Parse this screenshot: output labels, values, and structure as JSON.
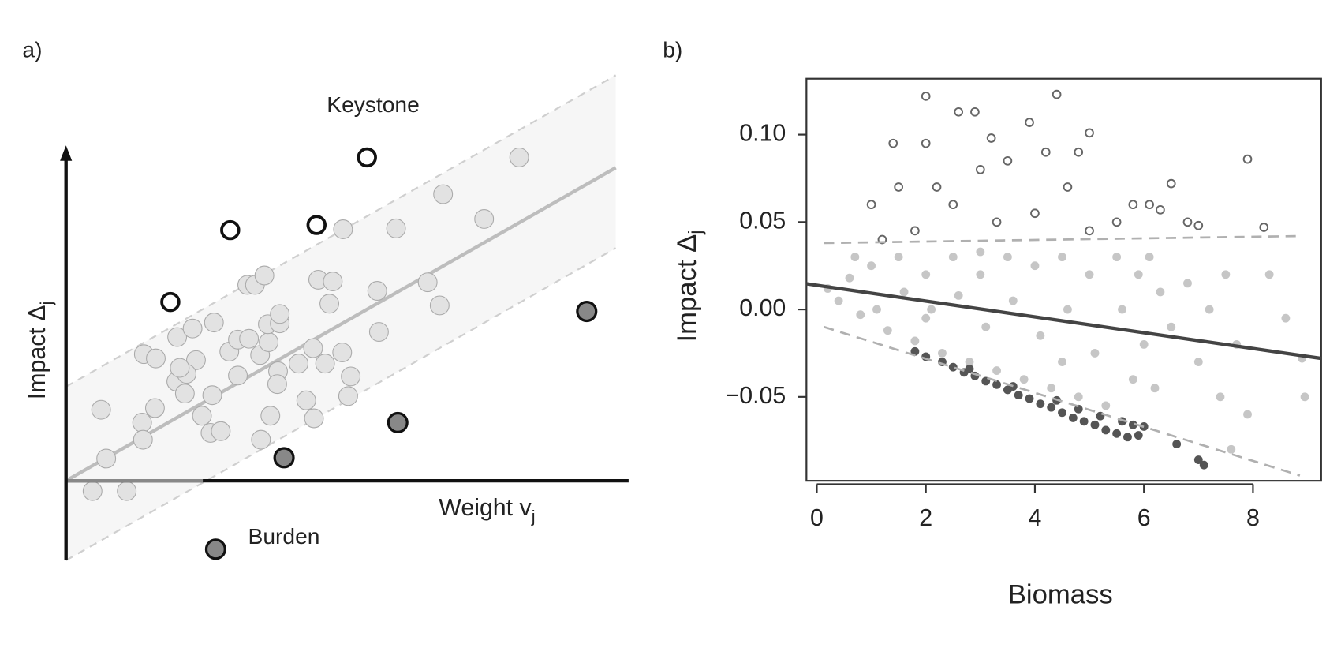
{
  "panel_a": {
    "label": "a)",
    "y_label": {
      "text": "Impact Δ",
      "subscript": "j"
    },
    "x_label": {
      "text": "Weight v",
      "subscript": "j"
    },
    "keystone_label": "Keystone",
    "burden_label": "Burden"
  },
  "chart_data": {
    "type": "scatter",
    "panel_label": "b)",
    "x_label": "Biomass",
    "y_label": {
      "text": "Impact Δ",
      "subscript": "j"
    },
    "xlim": [
      -0.19,
      9.25
    ],
    "ylim": [
      -0.098,
      0.132
    ],
    "xticks": [
      0,
      2,
      4,
      6,
      8
    ],
    "yticks": [
      {
        "value": 0.1,
        "label": "0.10"
      },
      {
        "value": 0.05,
        "label": "0.05"
      },
      {
        "value": 0,
        "label": "0.00"
      },
      {
        "value": -0.05,
        "label": "−0.05"
      }
    ],
    "series": [
      {
        "marker": "filled",
        "color": "#c6c6c6",
        "x": [
          0.2,
          0.4,
          0.6,
          0.8,
          1.0,
          1.1,
          1.3,
          1.5,
          1.6,
          1.8,
          2.0,
          2.1,
          2.3,
          2.5,
          2.6,
          2.8,
          3.0,
          3.1,
          3.3,
          3.5,
          3.6,
          3.8,
          4.0,
          4.1,
          4.3,
          4.5,
          4.6,
          4.8,
          5.0,
          5.1,
          5.3,
          5.5,
          5.6,
          5.8,
          5.9,
          6.0,
          6.1,
          6.2,
          6.3,
          6.5,
          6.8,
          7.0,
          7.2,
          7.4,
          7.5,
          7.7,
          8.3,
          8.6,
          8.9,
          8.95,
          7.9,
          7.6,
          0.7,
          3.0,
          2.0,
          4.5
        ],
        "values": [
          0.012,
          0.005,
          0.018,
          -0.003,
          0.025,
          0.0,
          -0.012,
          0.03,
          0.01,
          -0.018,
          0.02,
          0.0,
          -0.025,
          0.03,
          0.008,
          -0.03,
          0.02,
          -0.01,
          -0.035,
          0.03,
          0.005,
          -0.04,
          0.025,
          -0.015,
          -0.045,
          0.03,
          0.0,
          -0.05,
          0.02,
          -0.025,
          -0.055,
          0.03,
          0.0,
          -0.04,
          0.02,
          -0.02,
          0.03,
          -0.045,
          0.01,
          -0.01,
          0.015,
          -0.03,
          0.0,
          -0.05,
          0.02,
          -0.02,
          0.02,
          -0.005,
          -0.028,
          -0.05,
          -0.06,
          -0.08,
          0.03,
          0.033,
          -0.005,
          -0.03
        ]
      },
      {
        "marker": "open",
        "color": "#666666",
        "x": [
          2.0,
          4.4,
          2.6,
          2.9,
          3.9,
          5.0,
          1.0,
          7.9,
          8.2,
          6.5,
          7.0,
          1.4,
          2.0,
          3.2,
          4.2,
          1.5,
          6.1,
          6.3,
          1.8,
          3.0,
          3.5,
          4.6,
          5.5,
          2.5,
          4.0,
          5.0,
          1.2,
          3.3,
          2.2,
          4.8,
          5.8,
          6.8
        ],
        "values": [
          0.122,
          0.123,
          0.113,
          0.113,
          0.107,
          0.101,
          0.06,
          0.086,
          0.047,
          0.072,
          0.048,
          0.095,
          0.095,
          0.098,
          0.09,
          0.07,
          0.06,
          0.057,
          0.045,
          0.08,
          0.085,
          0.07,
          0.05,
          0.06,
          0.055,
          0.045,
          0.04,
          0.05,
          0.07,
          0.09,
          0.06,
          0.05
        ]
      },
      {
        "marker": "filled",
        "color": "#555555",
        "x": [
          1.8,
          2.0,
          2.3,
          2.5,
          2.7,
          2.9,
          3.1,
          3.3,
          3.5,
          3.7,
          3.9,
          4.1,
          4.3,
          4.5,
          4.7,
          4.9,
          5.1,
          5.3,
          5.5,
          5.7,
          5.9,
          6.0,
          5.8,
          4.4,
          3.6,
          2.8,
          6.6,
          7.0,
          7.1,
          5.6,
          5.2,
          4.8
        ],
        "values": [
          -0.024,
          -0.027,
          -0.03,
          -0.033,
          -0.036,
          -0.038,
          -0.041,
          -0.043,
          -0.046,
          -0.049,
          -0.051,
          -0.054,
          -0.056,
          -0.059,
          -0.062,
          -0.064,
          -0.066,
          -0.069,
          -0.071,
          -0.073,
          -0.072,
          -0.067,
          -0.066,
          -0.052,
          -0.044,
          -0.034,
          -0.077,
          -0.086,
          -0.089,
          -0.064,
          -0.061,
          -0.057
        ]
      },
      {
        "marker": "line",
        "style": "solid",
        "color": "#444444",
        "x": [
          -0.19,
          9.25
        ],
        "values": [
          0.0147,
          -0.028
        ]
      },
      {
        "marker": "line",
        "style": "dashed",
        "color": "#b0b0b0",
        "x": [
          0.13,
          8.86
        ],
        "values": [
          0.038,
          0.042
        ]
      },
      {
        "marker": "line",
        "style": "dashed",
        "color": "#b0b0b0",
        "x": [
          0.13,
          8.86
        ],
        "values": [
          -0.01,
          -0.095
        ]
      }
    ]
  }
}
